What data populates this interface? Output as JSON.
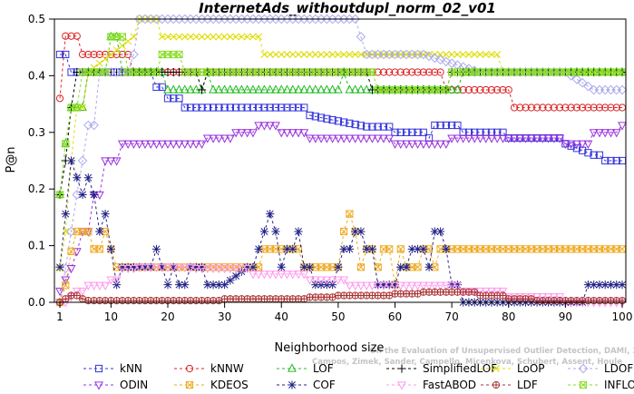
{
  "chart_data": {
    "type": "line",
    "title": "InternetAds_withoutdupl_norm_02_v01",
    "xlabel": "Neighborhood size",
    "ylabel": "P@n",
    "xlim": [
      1,
      100
    ],
    "ylim": [
      0,
      0.5
    ],
    "x_ticks": [
      1,
      10,
      20,
      30,
      40,
      50,
      60,
      70,
      80,
      90,
      100
    ],
    "y_ticks": [
      0.0,
      0.1,
      0.2,
      0.3,
      0.4,
      0.5
    ],
    "x_tick_labels": [
      "1",
      "10",
      "20",
      "30",
      "40",
      "50",
      "60",
      "70",
      "80",
      "90",
      "100"
    ],
    "y_tick_labels": [
      "0.0",
      "0.1",
      "0.2",
      "0.3",
      "0.4",
      "0.5"
    ],
    "grid": false,
    "legend_position": "bottom",
    "watermark_lines": [
      "Campos, Zimek, Sander, Campello, Micenkova, Schubert, Assent, Houle",
      "On the Evaluation of Unsupervised Outlier Detection, DAMI, 2015."
    ],
    "series": [
      {
        "name": "kNN",
        "color": "#3333dd",
        "marker": "square",
        "points": [
          [
            1,
            0.4375
          ],
          [
            2,
            0.4375
          ],
          [
            3,
            0.40625
          ],
          [
            5,
            0.40625
          ],
          [
            10,
            0.40625
          ],
          [
            17,
            0.40625
          ],
          [
            18,
            0.38
          ],
          [
            20,
            0.36
          ],
          [
            23,
            0.34375
          ],
          [
            25,
            0.34375
          ],
          [
            33,
            0.34375
          ],
          [
            45,
            0.33
          ],
          [
            55,
            0.31
          ],
          [
            60,
            0.3
          ],
          [
            66,
            0.29
          ],
          [
            67,
            0.3125
          ],
          [
            70,
            0.3125
          ],
          [
            72,
            0.3
          ],
          [
            80,
            0.29
          ],
          [
            90,
            0.28
          ],
          [
            95,
            0.26
          ],
          [
            97,
            0.25
          ],
          [
            100,
            0.25
          ]
        ]
      },
      {
        "name": "kNNW",
        "color": "#dd2222",
        "marker": "circle",
        "points": [
          [
            1,
            0.36
          ],
          [
            2,
            0.47
          ],
          [
            3,
            0.47
          ],
          [
            4,
            0.47
          ],
          [
            5,
            0.4375
          ],
          [
            13,
            0.4375
          ],
          [
            14,
            0.40625
          ],
          [
            30,
            0.40625
          ],
          [
            55,
            0.40625
          ],
          [
            68,
            0.40625
          ],
          [
            69,
            0.375
          ],
          [
            80,
            0.375
          ],
          [
            81,
            0.34375
          ],
          [
            100,
            0.34375
          ]
        ]
      },
      {
        "name": "LOF",
        "color": "#22bb22",
        "marker": "triangle-up",
        "points": [
          [
            1,
            0.19
          ],
          [
            2,
            0.28
          ],
          [
            3,
            0.34375
          ],
          [
            4,
            0.34375
          ],
          [
            6,
            0.40625
          ],
          [
            9,
            0.40625
          ],
          [
            10,
            0.46875
          ],
          [
            11,
            0.46875
          ],
          [
            12,
            0.40625
          ],
          [
            19,
            0.40625
          ],
          [
            20,
            0.375
          ],
          [
            25,
            0.375
          ],
          [
            27,
            0.40625
          ],
          [
            28,
            0.375
          ],
          [
            50,
            0.375
          ],
          [
            51,
            0.40625
          ],
          [
            52,
            0.375
          ],
          [
            70,
            0.375
          ],
          [
            72,
            0.40625
          ],
          [
            100,
            0.40625
          ]
        ]
      },
      {
        "name": "SimplifiedLOF",
        "color": "#000000",
        "marker": "plus",
        "points": [
          [
            1,
            0.19
          ],
          [
            2,
            0.25
          ],
          [
            3,
            0.34375
          ],
          [
            4,
            0.40625
          ],
          [
            25,
            0.40625
          ],
          [
            26,
            0.375
          ],
          [
            27,
            0.40625
          ],
          [
            55,
            0.40625
          ],
          [
            56,
            0.375
          ],
          [
            68,
            0.375
          ],
          [
            70,
            0.40625
          ],
          [
            100,
            0.40625
          ]
        ]
      },
      {
        "name": "LoOP",
        "color": "#dddd00",
        "marker": "x",
        "points": [
          [
            1,
            0.06
          ],
          [
            2,
            0.125
          ],
          [
            3,
            0.25
          ],
          [
            4,
            0.34375
          ],
          [
            6,
            0.40625
          ],
          [
            10,
            0.4375
          ],
          [
            14,
            0.46875
          ],
          [
            15,
            0.5
          ],
          [
            18,
            0.5
          ],
          [
            19,
            0.46875
          ],
          [
            27,
            0.46875
          ],
          [
            36,
            0.46875
          ],
          [
            37,
            0.4375
          ],
          [
            78,
            0.4375
          ],
          [
            79,
            0.40625
          ],
          [
            100,
            0.40625
          ]
        ]
      },
      {
        "name": "LDOF",
        "color": "#aaaaee",
        "marker": "diamond",
        "points": [
          [
            1,
            0.0
          ],
          [
            2,
            0.06
          ],
          [
            3,
            0.125
          ],
          [
            4,
            0.19
          ],
          [
            5,
            0.25
          ],
          [
            6,
            0.3125
          ],
          [
            8,
            0.40625
          ],
          [
            12,
            0.40625
          ],
          [
            14,
            0.4375
          ],
          [
            15,
            0.5
          ],
          [
            20,
            0.5
          ],
          [
            30,
            0.5
          ],
          [
            50,
            0.5
          ],
          [
            53,
            0.5
          ],
          [
            54,
            0.46875
          ],
          [
            55,
            0.4375
          ],
          [
            65,
            0.4375
          ],
          [
            75,
            0.40625
          ],
          [
            90,
            0.40625
          ],
          [
            95,
            0.375
          ],
          [
            100,
            0.375
          ]
        ]
      },
      {
        "name": "ODIN",
        "color": "#9933dd",
        "marker": "triangle-down",
        "points": [
          [
            1,
            0.02
          ],
          [
            2,
            0.04
          ],
          [
            3,
            0.06
          ],
          [
            4,
            0.09
          ],
          [
            5,
            0.125
          ],
          [
            7,
            0.19
          ],
          [
            9,
            0.25
          ],
          [
            12,
            0.28
          ],
          [
            20,
            0.28
          ],
          [
            27,
            0.29
          ],
          [
            32,
            0.3
          ],
          [
            36,
            0.3125
          ],
          [
            40,
            0.3
          ],
          [
            45,
            0.29
          ],
          [
            55,
            0.29
          ],
          [
            60,
            0.28
          ],
          [
            70,
            0.29
          ],
          [
            80,
            0.29
          ],
          [
            90,
            0.28
          ],
          [
            95,
            0.3
          ],
          [
            100,
            0.3125
          ]
        ]
      },
      {
        "name": "KDEOS",
        "color": "#eeaa22",
        "marker": "square-x",
        "points": [
          [
            1,
            0.0
          ],
          [
            2,
            0.03
          ],
          [
            3,
            0.09
          ],
          [
            4,
            0.125
          ],
          [
            6,
            0.125
          ],
          [
            7,
            0.094
          ],
          [
            8,
            0.094
          ],
          [
            9,
            0.125
          ],
          [
            10,
            0.094
          ],
          [
            11,
            0.062
          ],
          [
            12,
            0.062
          ],
          [
            36,
            0.062
          ],
          [
            37,
            0.094
          ],
          [
            43,
            0.094
          ],
          [
            44,
            0.062
          ],
          [
            50,
            0.062
          ],
          [
            51,
            0.125
          ],
          [
            52,
            0.156
          ],
          [
            53,
            0.125
          ],
          [
            54,
            0.062
          ],
          [
            55,
            0.094
          ],
          [
            56,
            0.094
          ],
          [
            57,
            0.062
          ],
          [
            58,
            0.094
          ],
          [
            59,
            0.094
          ],
          [
            60,
            0.031
          ],
          [
            61,
            0.094
          ],
          [
            62,
            0.062
          ],
          [
            64,
            0.062
          ],
          [
            65,
            0.094
          ],
          [
            66,
            0.094
          ],
          [
            67,
            0.062
          ],
          [
            68,
            0.094
          ],
          [
            69,
            0.094
          ],
          [
            70,
            0.094
          ],
          [
            100,
            0.094
          ]
        ]
      },
      {
        "name": "COF",
        "color": "#222288",
        "marker": "asterisk",
        "points": [
          [
            1,
            0.062
          ],
          [
            2,
            0.156
          ],
          [
            3,
            0.25
          ],
          [
            4,
            0.22
          ],
          [
            5,
            0.19
          ],
          [
            6,
            0.22
          ],
          [
            7,
            0.19
          ],
          [
            8,
            0.125
          ],
          [
            9,
            0.156
          ],
          [
            10,
            0.094
          ],
          [
            11,
            0.031
          ],
          [
            12,
            0.062
          ],
          [
            17,
            0.062
          ],
          [
            18,
            0.094
          ],
          [
            19,
            0.062
          ],
          [
            20,
            0.031
          ],
          [
            21,
            0.062
          ],
          [
            22,
            0.031
          ],
          [
            23,
            0.031
          ],
          [
            24,
            0.062
          ],
          [
            25,
            0.062
          ],
          [
            26,
            0.062
          ],
          [
            27,
            0.031
          ],
          [
            28,
            0.031
          ],
          [
            30,
            0.031
          ],
          [
            34,
            0.062
          ],
          [
            36,
            0.094
          ],
          [
            37,
            0.125
          ],
          [
            38,
            0.156
          ],
          [
            39,
            0.125
          ],
          [
            40,
            0.062
          ],
          [
            41,
            0.094
          ],
          [
            42,
            0.094
          ],
          [
            43,
            0.125
          ],
          [
            44,
            0.062
          ],
          [
            46,
            0.031
          ],
          [
            48,
            0.031
          ],
          [
            50,
            0.062
          ],
          [
            51,
            0.094
          ],
          [
            52,
            0.094
          ],
          [
            53,
            0.125
          ],
          [
            54,
            0.125
          ],
          [
            55,
            0.094
          ],
          [
            56,
            0.094
          ],
          [
            57,
            0.031
          ],
          [
            58,
            0.031
          ],
          [
            60,
            0.031
          ],
          [
            61,
            0.062
          ],
          [
            62,
            0.062
          ],
          [
            63,
            0.094
          ],
          [
            64,
            0.094
          ],
          [
            65,
            0.094
          ],
          [
            66,
            0.062
          ],
          [
            67,
            0.125
          ],
          [
            68,
            0.125
          ],
          [
            69,
            0.094
          ],
          [
            70,
            0.031
          ],
          [
            71,
            0.031
          ],
          [
            72,
            0.0
          ],
          [
            93,
            0.0
          ],
          [
            94,
            0.031
          ],
          [
            100,
            0.031
          ]
        ]
      },
      {
        "name": "FastABOD",
        "color": "#ff99ee",
        "marker": "triangle-down",
        "points": [
          [
            1,
            0.0
          ],
          [
            2,
            0.0
          ],
          [
            3,
            0.01
          ],
          [
            4,
            0.02
          ],
          [
            6,
            0.03
          ],
          [
            8,
            0.03
          ],
          [
            10,
            0.04
          ],
          [
            12,
            0.06
          ],
          [
            15,
            0.062
          ],
          [
            17,
            0.062
          ],
          [
            25,
            0.06
          ],
          [
            35,
            0.05
          ],
          [
            45,
            0.04
          ],
          [
            52,
            0.03
          ],
          [
            60,
            0.03
          ],
          [
            70,
            0.03
          ],
          [
            72,
            0.02
          ],
          [
            80,
            0.01
          ],
          [
            90,
            0.0
          ],
          [
            100,
            0.0
          ]
        ]
      },
      {
        "name": "LDF",
        "color": "#aa3333",
        "marker": "circle-plus",
        "points": [
          [
            1,
            0.0
          ],
          [
            2,
            0.006
          ],
          [
            3,
            0.012
          ],
          [
            4,
            0.012
          ],
          [
            5,
            0.006
          ],
          [
            6,
            0.003
          ],
          [
            10,
            0.003
          ],
          [
            20,
            0.003
          ],
          [
            30,
            0.006
          ],
          [
            40,
            0.006
          ],
          [
            45,
            0.009
          ],
          [
            50,
            0.012
          ],
          [
            55,
            0.012
          ],
          [
            60,
            0.015
          ],
          [
            65,
            0.018
          ],
          [
            70,
            0.018
          ],
          [
            75,
            0.012
          ],
          [
            80,
            0.006
          ],
          [
            85,
            0.003
          ],
          [
            90,
            0.003
          ],
          [
            100,
            0.003
          ]
        ]
      },
      {
        "name": "INFLO",
        "color": "#88dd22",
        "marker": "square-x",
        "points": [
          [
            1,
            0.19
          ],
          [
            2,
            0.28
          ],
          [
            3,
            0.34375
          ],
          [
            5,
            0.40625
          ],
          [
            9,
            0.40625
          ],
          [
            10,
            0.46875
          ],
          [
            12,
            0.46875
          ],
          [
            13,
            0.40625
          ],
          [
            18,
            0.40625
          ],
          [
            19,
            0.4375
          ],
          [
            22,
            0.4375
          ],
          [
            23,
            0.40625
          ],
          [
            25,
            0.40625
          ],
          [
            26,
            0.40625
          ],
          [
            56,
            0.40625
          ],
          [
            57,
            0.375
          ],
          [
            68,
            0.375
          ],
          [
            70,
            0.40625
          ],
          [
            100,
            0.40625
          ]
        ]
      }
    ]
  }
}
